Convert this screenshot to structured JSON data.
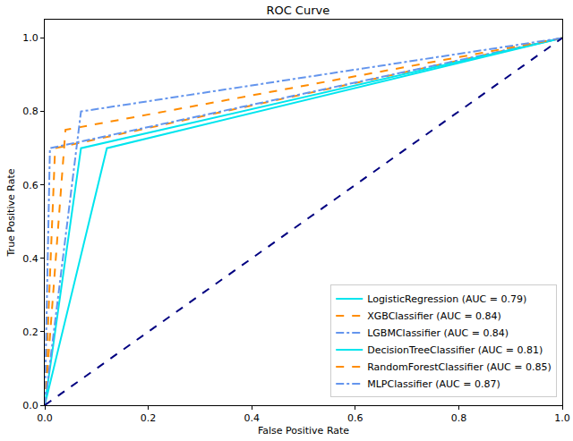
{
  "chart_data": {
    "type": "line",
    "title": "ROC Curve",
    "x_label": "False Positive Rate",
    "y_label": "True Positive Rate",
    "xlim": [
      0,
      1
    ],
    "ylim": [
      0,
      1.05
    ],
    "xticks": [
      {
        "value": 0,
        "label": "0.0"
      },
      {
        "value": 0.2,
        "label": "0.2"
      },
      {
        "value": 0.4,
        "label": "0.4"
      },
      {
        "value": 0.6,
        "label": "0.6"
      },
      {
        "value": 0.8,
        "label": "0.8"
      },
      {
        "value": 1,
        "label": "1.0"
      }
    ],
    "yticks": [
      {
        "value": 0,
        "label": "0.0"
      },
      {
        "value": 0.2,
        "label": "0.2"
      },
      {
        "value": 0.4,
        "label": "0.4"
      },
      {
        "value": 0.6,
        "label": "0.6"
      },
      {
        "value": 0.8,
        "label": "0.8"
      },
      {
        "value": 1,
        "label": "1.0"
      }
    ],
    "grid": false,
    "legend": "lower right",
    "series": [
      {
        "name": "LogisticRegression (AUC = 0.79)",
        "color": "#00e5ee",
        "line_style": "solid",
        "x": [
          0,
          0.12,
          1
        ],
        "values": [
          0,
          0.7,
          1
        ]
      },
      {
        "name": "XGBClassifier (AUC = 0.84)",
        "color": "#ff8c00",
        "line_style": "dashed",
        "x": [
          0,
          0.02,
          1
        ],
        "values": [
          0,
          0.7,
          1
        ]
      },
      {
        "name": "LGBMClassifier (AUC = 0.84)",
        "color": "#6495ed",
        "line_style": "dashdot",
        "x": [
          0,
          0.01,
          1
        ],
        "values": [
          0,
          0.7,
          1
        ]
      },
      {
        "name": "DecisionTreeClassifier (AUC = 0.81)",
        "color": "#00e5ee",
        "line_style": "solid",
        "x": [
          0,
          0.07,
          1
        ],
        "values": [
          0,
          0.7,
          1
        ]
      },
      {
        "name": "RandomForestClassifier (AUC = 0.85)",
        "color": "#ff8c00",
        "line_style": "dashed",
        "x": [
          0,
          0.04,
          1
        ],
        "values": [
          0,
          0.75,
          1
        ]
      },
      {
        "name": "MLPClassifier (AUC = 0.87)",
        "color": "#6495ed",
        "line_style": "dashdot",
        "x": [
          0,
          0.07,
          1
        ],
        "values": [
          0,
          0.8,
          1
        ]
      },
      {
        "color": "#000080",
        "line_style": "dashed",
        "x": [
          0,
          1
        ],
        "values": [
          0,
          1
        ]
      }
    ]
  }
}
